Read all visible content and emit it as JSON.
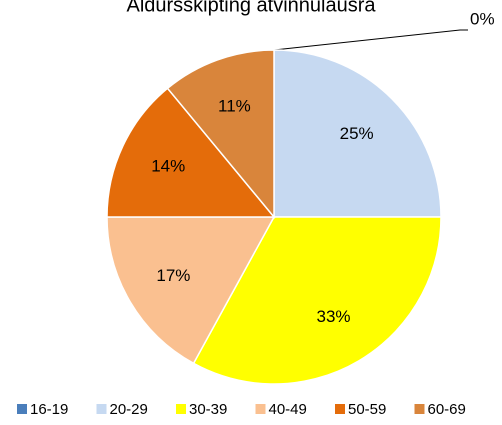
{
  "chart_data": {
    "type": "pie",
    "title": "Aldursskipting atvinnulausra",
    "categories": [
      "16-19",
      "20-29",
      "30-39",
      "40-49",
      "50-59",
      "60-69"
    ],
    "values": [
      0,
      25,
      33,
      17,
      14,
      11
    ],
    "value_labels": [
      "0%",
      "25%",
      "33%",
      "17%",
      "14%",
      "11%"
    ],
    "colors": [
      "#4a7ebb",
      "#c6d9f1",
      "#ffff00",
      "#fac090",
      "#e46c0a",
      "#d9853b"
    ],
    "legend": "bottom"
  }
}
